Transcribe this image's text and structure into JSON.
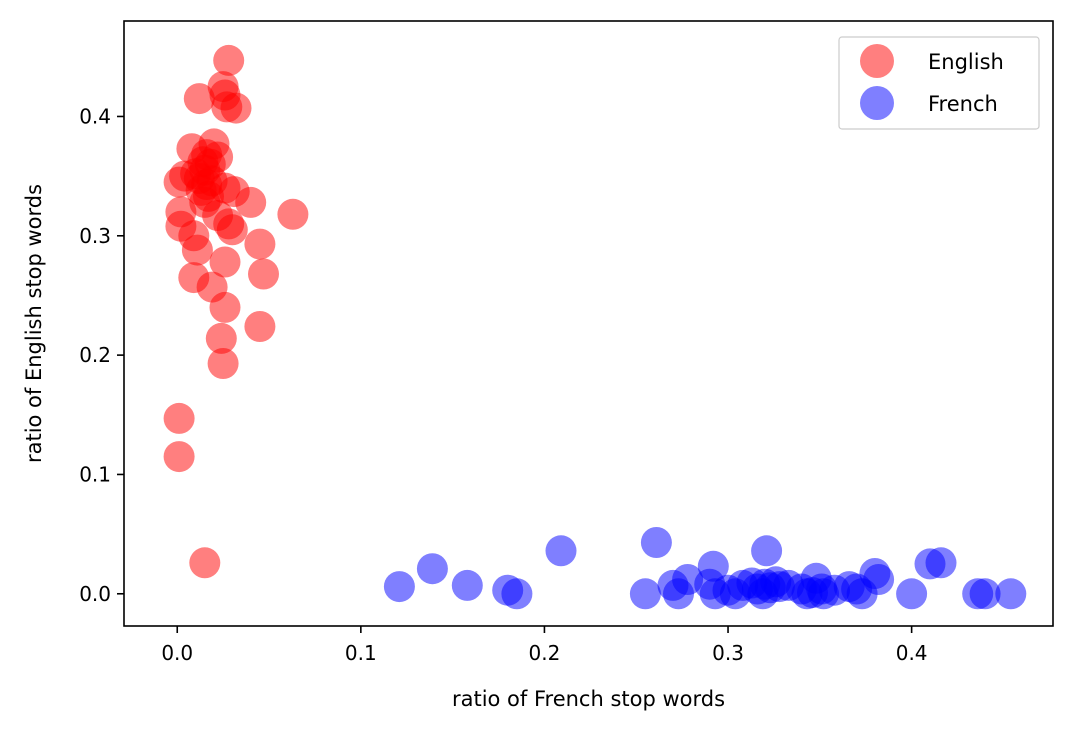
{
  "chart_data": {
    "type": "scatter",
    "title": "",
    "xlabel": "ratio of French stop words",
    "ylabel": "ratio of English stop words",
    "xlim": [
      -0.029,
      0.477
    ],
    "ylim": [
      -0.027,
      0.48
    ],
    "xticks": [
      0.0,
      0.1,
      0.2,
      0.3,
      0.4
    ],
    "xtick_labels": [
      "0.0",
      "0.1",
      "0.2",
      "0.3",
      "0.4"
    ],
    "yticks": [
      0.0,
      0.1,
      0.2,
      0.3,
      0.4
    ],
    "ytick_labels": [
      "0.0",
      "0.1",
      "0.2",
      "0.3",
      "0.4"
    ],
    "grid": false,
    "legend_position": "top-right",
    "series": [
      {
        "name": "English",
        "color": "#ff0000",
        "opacity": 0.5,
        "points": [
          [
            0.028,
            0.447
          ],
          [
            0.025,
            0.425
          ],
          [
            0.012,
            0.415
          ],
          [
            0.026,
            0.418
          ],
          [
            0.027,
            0.408
          ],
          [
            0.032,
            0.407
          ],
          [
            0.008,
            0.373
          ],
          [
            0.02,
            0.377
          ],
          [
            0.016,
            0.368
          ],
          [
            0.022,
            0.366
          ],
          [
            0.014,
            0.362
          ],
          [
            0.018,
            0.36
          ],
          [
            0.015,
            0.355
          ],
          [
            0.01,
            0.352
          ],
          [
            0.004,
            0.35
          ],
          [
            0.012,
            0.348
          ],
          [
            0.019,
            0.346
          ],
          [
            0.001,
            0.345
          ],
          [
            0.016,
            0.343
          ],
          [
            0.026,
            0.34
          ],
          [
            0.013,
            0.338
          ],
          [
            0.031,
            0.337
          ],
          [
            0.017,
            0.333
          ],
          [
            0.04,
            0.328
          ],
          [
            0.015,
            0.328
          ],
          [
            0.002,
            0.32
          ],
          [
            0.063,
            0.318
          ],
          [
            0.022,
            0.317
          ],
          [
            0.028,
            0.31
          ],
          [
            0.002,
            0.308
          ],
          [
            0.03,
            0.305
          ],
          [
            0.009,
            0.3
          ],
          [
            0.045,
            0.293
          ],
          [
            0.011,
            0.288
          ],
          [
            0.026,
            0.278
          ],
          [
            0.009,
            0.265
          ],
          [
            0.047,
            0.268
          ],
          [
            0.019,
            0.257
          ],
          [
            0.026,
            0.24
          ],
          [
            0.045,
            0.224
          ],
          [
            0.024,
            0.214
          ],
          [
            0.025,
            0.193
          ],
          [
            0.001,
            0.147
          ],
          [
            0.001,
            0.115
          ],
          [
            0.015,
            0.026
          ]
        ]
      },
      {
        "name": "French",
        "color": "#0000ff",
        "opacity": 0.5,
        "points": [
          [
            0.121,
            0.006
          ],
          [
            0.139,
            0.021
          ],
          [
            0.158,
            0.007
          ],
          [
            0.18,
            0.003
          ],
          [
            0.185,
            0.0
          ],
          [
            0.209,
            0.036
          ],
          [
            0.255,
            0.0
          ],
          [
            0.261,
            0.043
          ],
          [
            0.27,
            0.007
          ],
          [
            0.273,
            0.0
          ],
          [
            0.278,
            0.012
          ],
          [
            0.29,
            0.008
          ],
          [
            0.292,
            0.023
          ],
          [
            0.293,
            0.0
          ],
          [
            0.3,
            0.003
          ],
          [
            0.304,
            0.0
          ],
          [
            0.308,
            0.007
          ],
          [
            0.313,
            0.009
          ],
          [
            0.316,
            0.004
          ],
          [
            0.319,
            0.0
          ],
          [
            0.32,
            0.008
          ],
          [
            0.321,
            0.036
          ],
          [
            0.323,
            0.005
          ],
          [
            0.326,
            0.01
          ],
          [
            0.328,
            0.006
          ],
          [
            0.333,
            0.007
          ],
          [
            0.34,
            0.004
          ],
          [
            0.343,
            0.0
          ],
          [
            0.346,
            0.001
          ],
          [
            0.348,
            0.013
          ],
          [
            0.351,
            0.004
          ],
          [
            0.352,
            0.0
          ],
          [
            0.358,
            0.003
          ],
          [
            0.366,
            0.006
          ],
          [
            0.37,
            0.004
          ],
          [
            0.373,
            0.0
          ],
          [
            0.38,
            0.017
          ],
          [
            0.382,
            0.012
          ],
          [
            0.4,
            0.0
          ],
          [
            0.41,
            0.025
          ],
          [
            0.416,
            0.026
          ],
          [
            0.436,
            0.0
          ],
          [
            0.44,
            0.0
          ],
          [
            0.454,
            0.0
          ]
        ]
      }
    ]
  }
}
